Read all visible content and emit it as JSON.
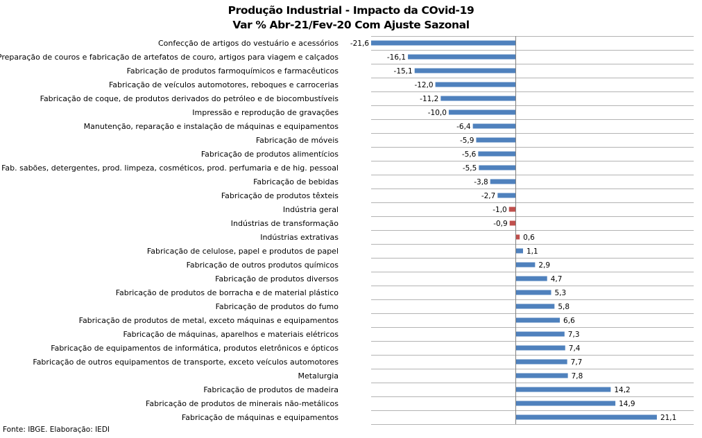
{
  "chart_data": {
    "type": "bar",
    "orientation": "horizontal",
    "title": "Produção Industrial - Impacto da COvid-19",
    "subtitle": "Var % Abr-21/Fev-20 Com Ajuste Sazonal",
    "grid": "horizontal",
    "categories": [
      "Confecção de artigos do vestuário e acessórios",
      "Preparação de couros e fabricação de artefatos de couro, artigos para viagem e calçados",
      "Fabricação de produtos farmoquímicos e farmacêuticos",
      "Fabricação de veículos automotores, reboques e carrocerias",
      "Fabricação de coque, de produtos derivados do petróleo e de biocombustíveis",
      "Impressão e reprodução de gravações",
      "Manutenção, reparação e instalação de máquinas e equipamentos",
      "Fabricação de móveis",
      "Fabricação de produtos alimentícios",
      "Fab. sabões, detergentes, prod. limpeza, cosméticos, prod. perfumaria e de hig. pessoal",
      "Fabricação de bebidas",
      "Fabricação de produtos têxteis",
      "Indústria geral",
      "Indústrias de transformação",
      "Indústrias extrativas",
      "Fabricação de celulose, papel e produtos de papel",
      "Fabricação de outros produtos químicos",
      "Fabricação de produtos diversos",
      "Fabricação de produtos de borracha e de material plástico",
      "Fabricação de produtos do fumo",
      "Fabricação de produtos de metal, exceto máquinas e equipamentos",
      "Fabricação de máquinas, aparelhos e materiais elétricos",
      "Fabricação de equipamentos de informática, produtos eletrônicos e ópticos",
      "Fabricação de outros equipamentos de transporte, exceto veículos automotores",
      "Metalurgia",
      "Fabricação de produtos de madeira",
      "Fabricação de produtos de minerais não-metálicos",
      "Fabricação de máquinas e equipamentos"
    ],
    "values": [
      -21.6,
      -16.1,
      -15.1,
      -12.0,
      -11.2,
      -10.0,
      -6.4,
      -5.9,
      -5.6,
      -5.5,
      -3.8,
      -2.7,
      -1.0,
      -0.9,
      0.6,
      1.1,
      2.9,
      4.7,
      5.3,
      5.8,
      6.6,
      7.3,
      7.4,
      7.7,
      7.8,
      14.2,
      14.9,
      21.1
    ],
    "value_labels": [
      "-21,6",
      "-16,1",
      "-15,1",
      "-12,0",
      "-11,2",
      "-10,0",
      "-6,4",
      "-5,9",
      "-5,6",
      "-5,5",
      "-3,8",
      "-2,7",
      "-1,0",
      "-0,9",
      "0,6",
      "1,1",
      "2,9",
      "4,7",
      "5,3",
      "5,8",
      "6,6",
      "7,3",
      "7,4",
      "7,7",
      "7,8",
      "14,2",
      "14,9",
      "21,1"
    ],
    "highlighted_categories": [
      "Indústria geral",
      "Indústrias de transformação",
      "Indústrias extrativas"
    ],
    "xlim": [
      -21.6,
      26.6
    ],
    "colors": {
      "bar": "#4f81bd",
      "highlight": "#c0504d",
      "grid": "#b3b3b3",
      "axis": "#808080"
    }
  },
  "footer": "Fonte: IBGE. Elaboração: IEDI"
}
